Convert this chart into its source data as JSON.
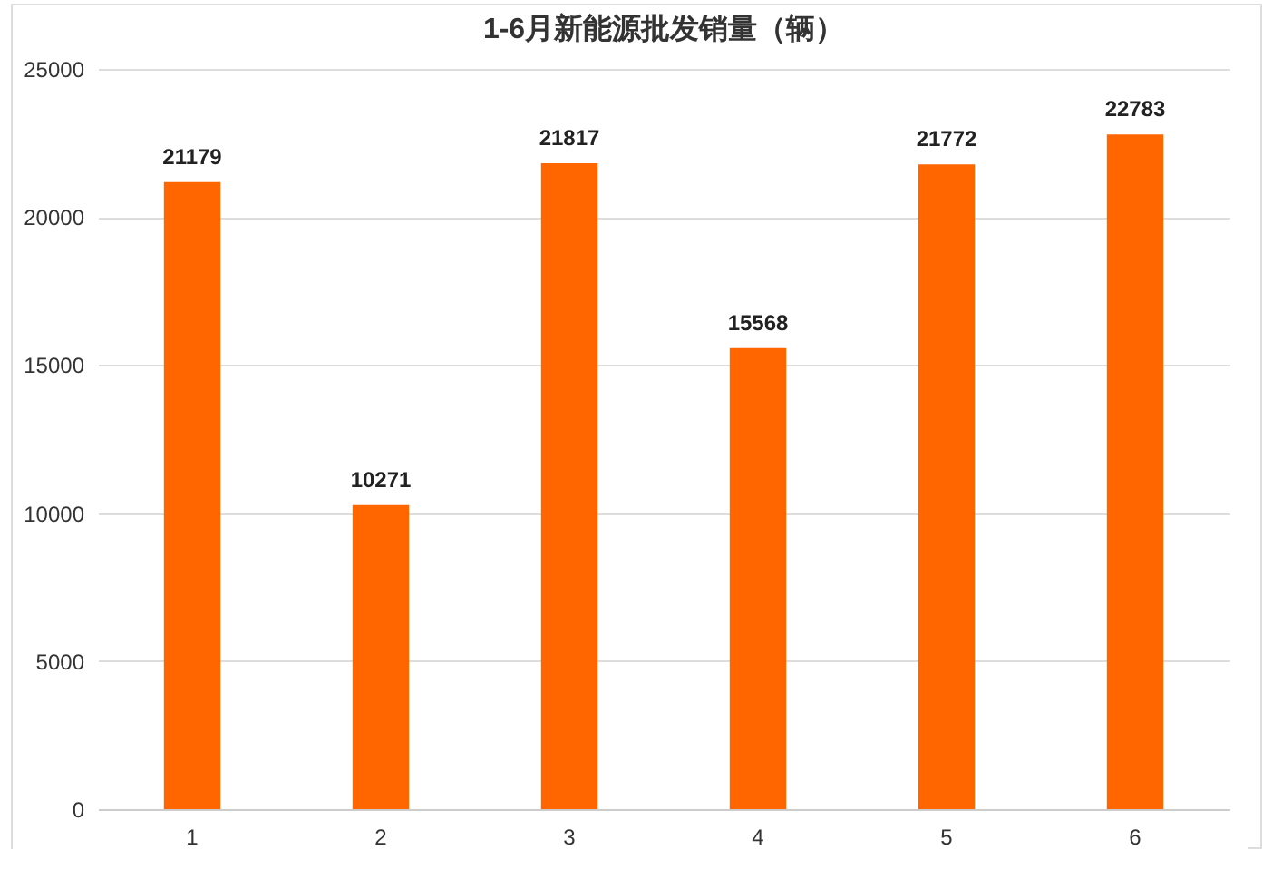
{
  "chart_data": {
    "type": "bar",
    "title": "1-6月新能源批发销量（辆）",
    "categories": [
      "1",
      "2",
      "3",
      "4",
      "5",
      "6"
    ],
    "values": [
      21179,
      10271,
      21817,
      15568,
      21772,
      22783
    ],
    "color": "#ff6600",
    "ylim": [
      0,
      25000
    ],
    "yticks": [
      0,
      5000,
      10000,
      15000,
      20000,
      25000
    ],
    "grid": "y",
    "data_labels": true
  }
}
